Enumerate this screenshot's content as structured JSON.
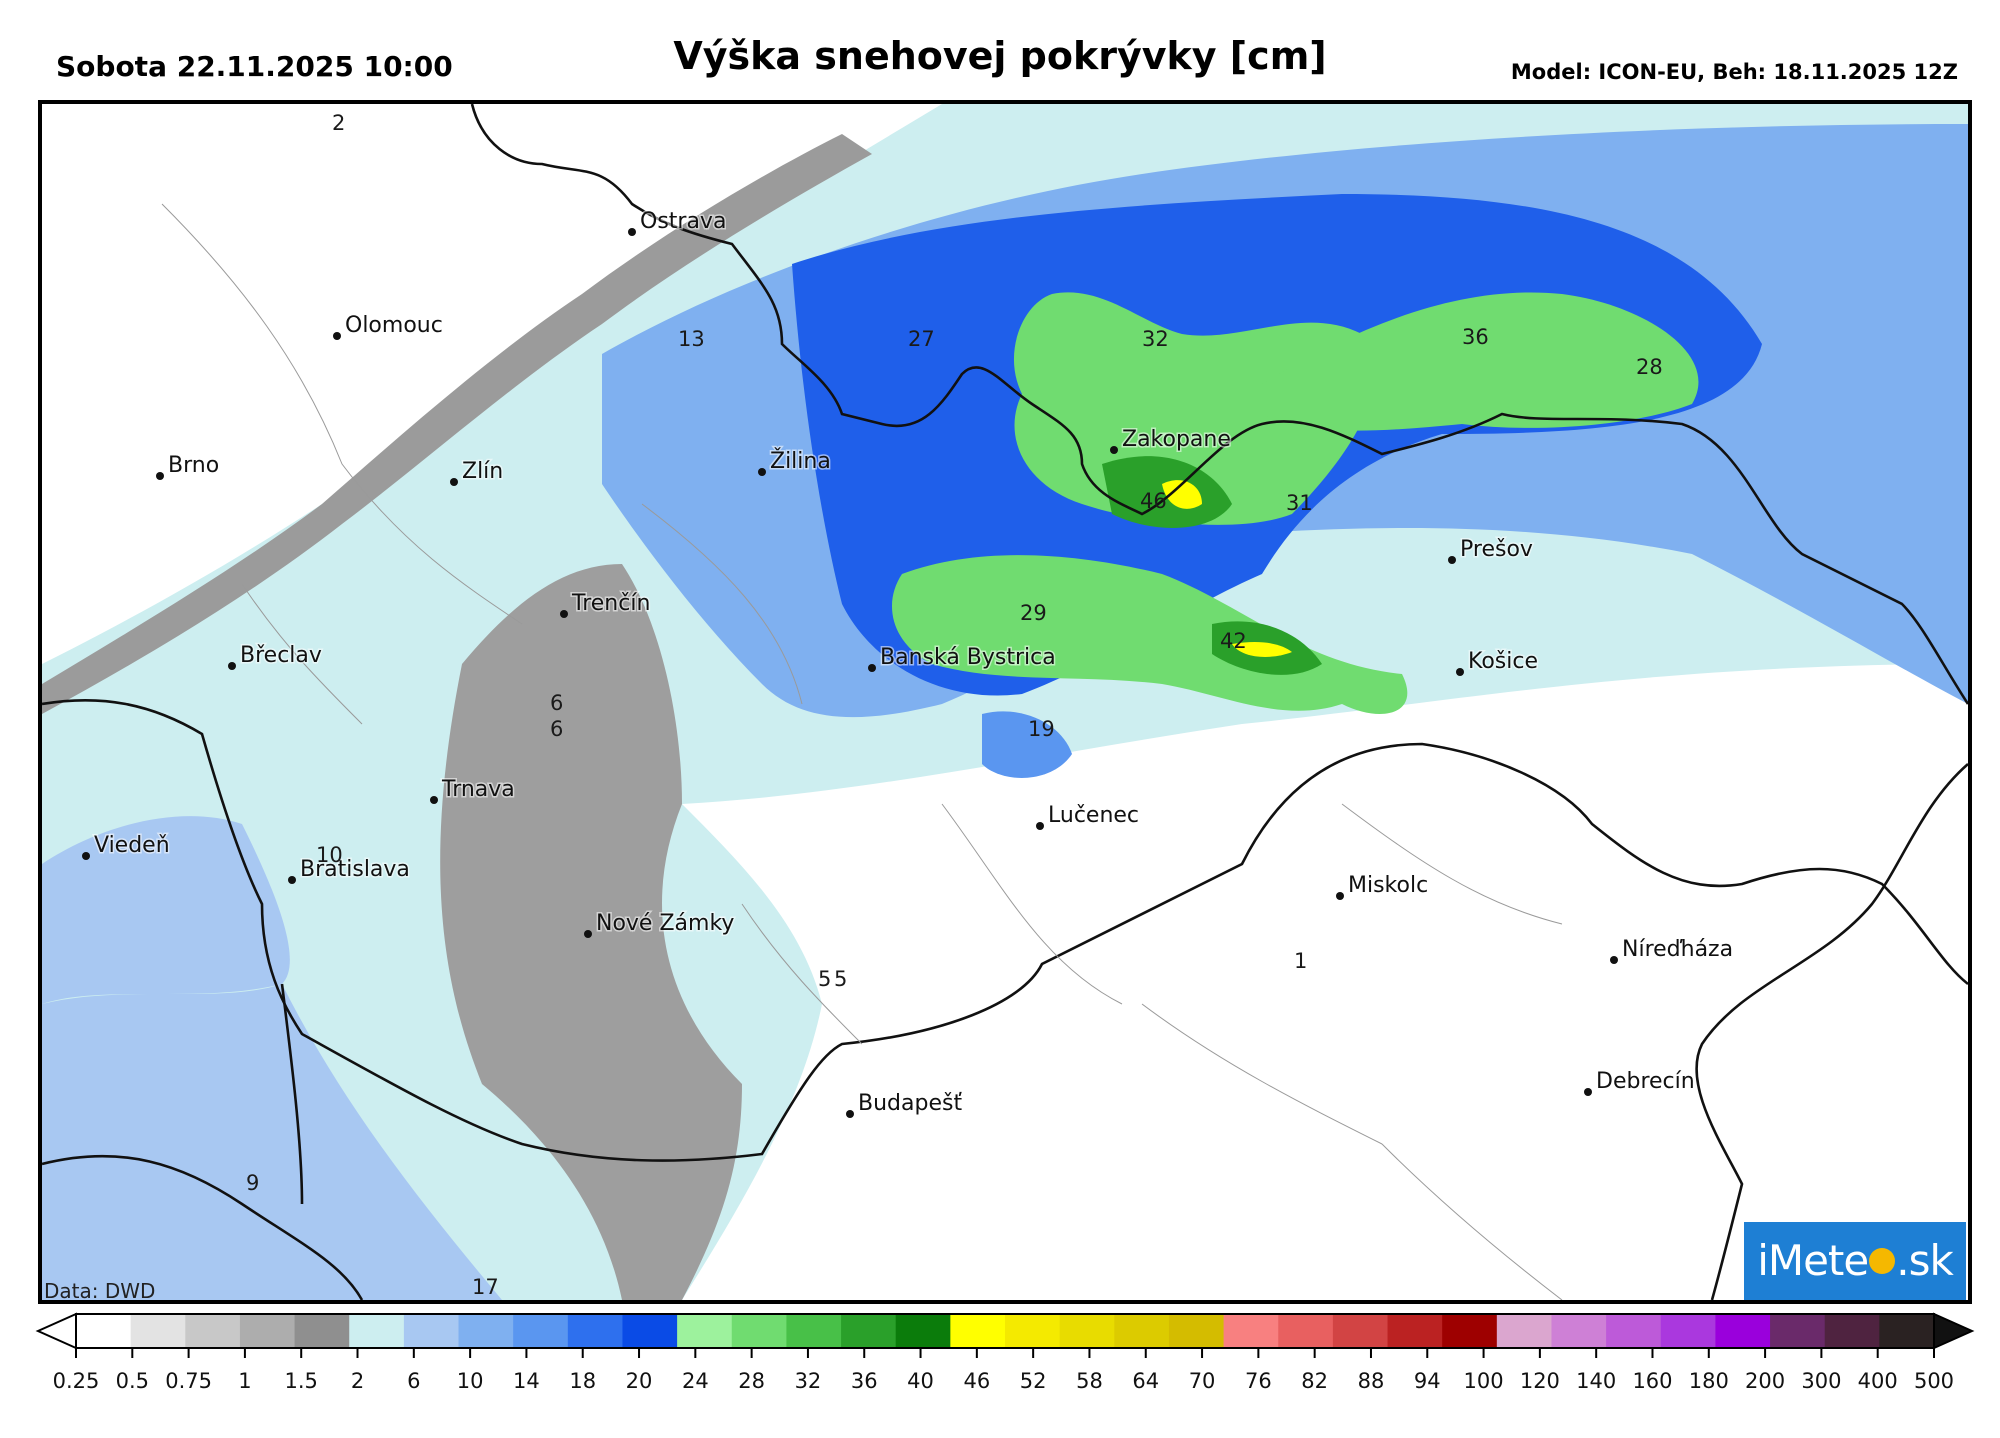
{
  "header": {
    "date_time": "Sobota 22.11.2025 10:00",
    "title": "Výška snehovej pokrývky [cm]",
    "model_run": "Model: ICON-EU, Beh: 18.11.2025 12Z"
  },
  "map": {
    "cities": [
      {
        "name": "Ostrava"
      },
      {
        "name": "Olomouc"
      },
      {
        "name": "Brno"
      },
      {
        "name": "Zlín"
      },
      {
        "name": "Žilina"
      },
      {
        "name": "Zakopane"
      },
      {
        "name": "Prešov"
      },
      {
        "name": "Trenčín"
      },
      {
        "name": "Břeclav"
      },
      {
        "name": "Banská Bystrica"
      },
      {
        "name": "Košice"
      },
      {
        "name": "Trnava"
      },
      {
        "name": "Lučenec"
      },
      {
        "name": "Viedeň"
      },
      {
        "name": "Bratislava"
      },
      {
        "name": "Miskolc"
      },
      {
        "name": "Nové Zámky"
      },
      {
        "name": "Níreďháza"
      },
      {
        "name": "Budapešť"
      },
      {
        "name": "Debrecín"
      }
    ],
    "value_labels": [
      "2",
      "13",
      "27",
      "32",
      "36",
      "28",
      "46",
      "31",
      "29",
      "42",
      "19",
      "6",
      "6",
      "10",
      "1",
      "5",
      "5",
      "9",
      "17"
    ],
    "data_credit": "Data: DWD",
    "logo": {
      "left": "iMete",
      "right": ".sk"
    }
  },
  "legend": {
    "ticks": [
      "0.25",
      "0.5",
      "0.75",
      "1",
      "1.5",
      "2",
      "6",
      "10",
      "14",
      "18",
      "20",
      "24",
      "28",
      "32",
      "36",
      "40",
      "46",
      "52",
      "58",
      "64",
      "70",
      "76",
      "82",
      "88",
      "94",
      "100",
      "120",
      "140",
      "160",
      "180",
      "200",
      "300",
      "400",
      "500"
    ],
    "colors": [
      "#ffffff",
      "#e3e3e3",
      "#c8c8c8",
      "#adadad",
      "#8f8f8f",
      "#cdeef0",
      "#a8c8f2",
      "#7fb0f0",
      "#5a96f0",
      "#2e70ee",
      "#0a4be6",
      "#9df29d",
      "#70dc70",
      "#48c048",
      "#2aa02a",
      "#0b7c0b",
      "#ffff00",
      "#f4ea00",
      "#e8dc00",
      "#dccb00",
      "#d4bc00",
      "#f88080",
      "#e86060",
      "#d24444",
      "#bb2222",
      "#9e0000",
      "#dba6cf",
      "#ce80d6",
      "#bd5ad9",
      "#aa38de",
      "#9a00dc",
      "#6a2a6a",
      "#4f2340",
      "#2a2222"
    ]
  }
}
